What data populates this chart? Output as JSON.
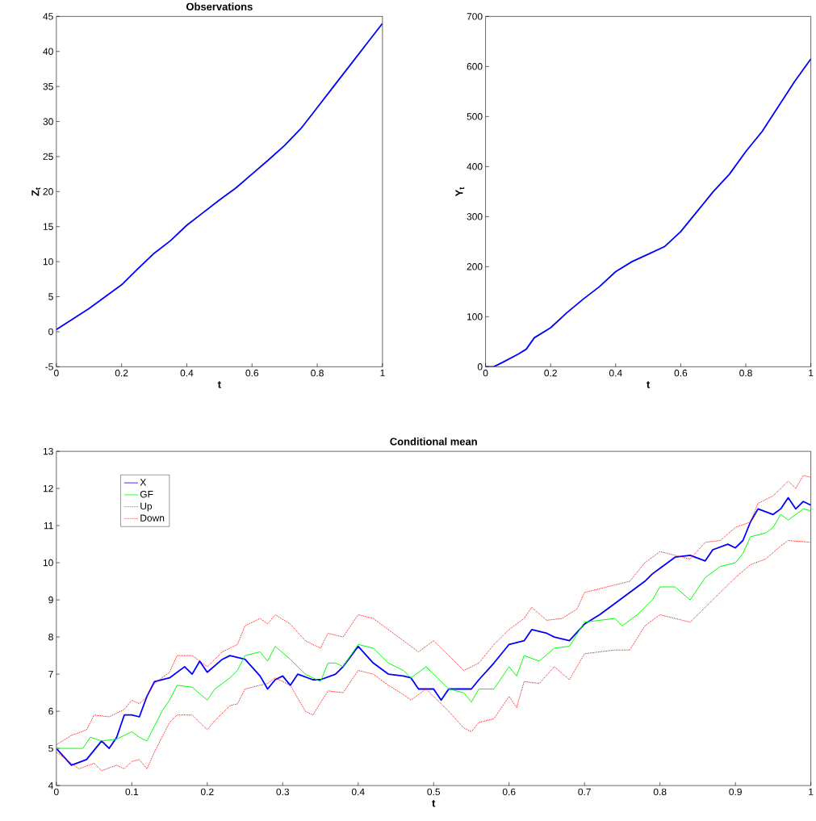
{
  "chart_data": [
    {
      "type": "line",
      "title": "Observations",
      "xlabel": "t",
      "ylabel": "Z$_{t}$",
      "xlim": [
        0,
        1
      ],
      "ylim": [
        -5,
        45
      ],
      "xticks": [
        0,
        0.2,
        0.4,
        0.6,
        0.8,
        1
      ],
      "yticks": [
        -5,
        0,
        5,
        10,
        15,
        20,
        25,
        30,
        35,
        40,
        45
      ],
      "series": [
        {
          "color": "#0000ff",
          "line_style": "solid",
          "x": [
            0,
            0.05,
            0.1,
            0.15,
            0.2,
            0.25,
            0.3,
            0.35,
            0.4,
            0.45,
            0.5,
            0.55,
            0.6,
            0.65,
            0.7,
            0.75,
            0.8,
            0.85,
            0.9,
            0.95,
            1
          ],
          "values": [
            0.3,
            1.8,
            3.3,
            5.0,
            6.7,
            9.0,
            11.2,
            13.0,
            15.2,
            17.0,
            18.8,
            20.5,
            22.5,
            24.5,
            26.6,
            29.0,
            32.0,
            35.0,
            38.0,
            41.0,
            44.0
          ]
        }
      ]
    },
    {
      "type": "line",
      "xlabel": "t",
      "ylabel": "Y$_{t}$",
      "xlim": [
        0,
        1
      ],
      "ylim": [
        0,
        700
      ],
      "xticks": [
        0,
        0.2,
        0.4,
        0.6,
        0.8,
        1
      ],
      "yticks": [
        0,
        100,
        200,
        300,
        400,
        500,
        600,
        700
      ],
      "series": [
        {
          "color": "#0000ff",
          "line_style": "solid",
          "x": [
            0,
            0.025,
            0.05,
            0.1,
            0.125,
            0.15,
            0.2,
            0.25,
            0.3,
            0.35,
            0.4,
            0.45,
            0.5,
            0.55,
            0.6,
            0.65,
            0.7,
            0.75,
            0.8,
            0.85,
            0.9,
            0.95,
            1
          ],
          "values": [
            0,
            0,
            8,
            25,
            35,
            58,
            78,
            108,
            135,
            160,
            190,
            210,
            225,
            240,
            270,
            310,
            350,
            385,
            430,
            470,
            520,
            570,
            615
          ]
        }
      ]
    },
    {
      "type": "line",
      "title": "Conditional mean",
      "xlabel": "t",
      "xlim": [
        0,
        1
      ],
      "ylim": [
        4,
        13
      ],
      "xticks": [
        0,
        0.1,
        0.2,
        0.3,
        0.4,
        0.5,
        0.6,
        0.7,
        0.8,
        0.9,
        1
      ],
      "yticks": [
        4,
        5,
        6,
        7,
        8,
        9,
        10,
        11,
        12,
        13
      ],
      "legend": "top left",
      "series": [
        {
          "name": "X",
          "color": "#0000ff",
          "line_style": "solid",
          "x": [
            0,
            0.02,
            0.04,
            0.06,
            0.07,
            0.08,
            0.09,
            0.1,
            0.11,
            0.12,
            0.13,
            0.15,
            0.17,
            0.18,
            0.19,
            0.2,
            0.22,
            0.23,
            0.25,
            0.27,
            0.28,
            0.29,
            0.3,
            0.31,
            0.32,
            0.34,
            0.35,
            0.37,
            0.38,
            0.4,
            0.42,
            0.44,
            0.46,
            0.47,
            0.48,
            0.5,
            0.51,
            0.52,
            0.54,
            0.55,
            0.56,
            0.58,
            0.6,
            0.62,
            0.63,
            0.65,
            0.66,
            0.68,
            0.7,
            0.72,
            0.74,
            0.76,
            0.78,
            0.79,
            0.8,
            0.82,
            0.84,
            0.86,
            0.87,
            0.89,
            0.9,
            0.91,
            0.92,
            0.93,
            0.95,
            0.96,
            0.97,
            0.98,
            0.99,
            1
          ],
          "values": [
            5.0,
            4.55,
            4.7,
            5.2,
            5.0,
            5.3,
            5.9,
            5.9,
            5.85,
            6.4,
            6.8,
            6.9,
            7.2,
            7.0,
            7.35,
            7.05,
            7.4,
            7.5,
            7.4,
            6.95,
            6.6,
            6.85,
            6.95,
            6.7,
            7.0,
            6.85,
            6.85,
            7.0,
            7.2,
            7.75,
            7.3,
            7.0,
            6.95,
            6.9,
            6.6,
            6.6,
            6.3,
            6.6,
            6.6,
            6.6,
            6.85,
            7.3,
            7.8,
            7.9,
            8.2,
            8.1,
            8.0,
            7.9,
            8.35,
            8.6,
            8.9,
            9.2,
            9.5,
            9.7,
            9.85,
            10.15,
            10.2,
            10.05,
            10.35,
            10.5,
            10.4,
            10.6,
            11.1,
            11.45,
            11.3,
            11.45,
            11.75,
            11.45,
            11.65,
            11.55
          ]
        },
        {
          "name": "GF",
          "color": "#00ff00",
          "line_style": "solid",
          "x": [
            0,
            0.02,
            0.035,
            0.045,
            0.06,
            0.08,
            0.1,
            0.11,
            0.12,
            0.13,
            0.14,
            0.15,
            0.16,
            0.18,
            0.2,
            0.21,
            0.22,
            0.23,
            0.24,
            0.25,
            0.27,
            0.28,
            0.29,
            0.31,
            0.33,
            0.35,
            0.36,
            0.37,
            0.38,
            0.4,
            0.42,
            0.44,
            0.46,
            0.47,
            0.49,
            0.5,
            0.52,
            0.54,
            0.55,
            0.56,
            0.58,
            0.6,
            0.61,
            0.62,
            0.64,
            0.66,
            0.68,
            0.7,
            0.72,
            0.74,
            0.75,
            0.77,
            0.79,
            0.8,
            0.82,
            0.84,
            0.86,
            0.88,
            0.9,
            0.91,
            0.92,
            0.94,
            0.95,
            0.96,
            0.97,
            0.99,
            1
          ],
          "values": [
            5.0,
            5.0,
            5.0,
            5.3,
            5.2,
            5.25,
            5.45,
            5.3,
            5.2,
            5.6,
            6.0,
            6.3,
            6.7,
            6.65,
            6.3,
            6.6,
            6.75,
            6.9,
            7.1,
            7.5,
            7.6,
            7.35,
            7.75,
            7.4,
            7.0,
            6.8,
            7.3,
            7.3,
            7.2,
            7.8,
            7.7,
            7.3,
            7.1,
            6.9,
            7.2,
            7.0,
            6.6,
            6.5,
            6.25,
            6.6,
            6.6,
            7.2,
            6.95,
            7.5,
            7.35,
            7.7,
            7.75,
            8.4,
            8.45,
            8.5,
            8.3,
            8.6,
            9.0,
            9.35,
            9.35,
            9.0,
            9.6,
            9.9,
            10.0,
            10.25,
            10.7,
            10.8,
            10.95,
            11.3,
            11.15,
            11.45,
            11.4
          ]
        },
        {
          "name": "Up",
          "color": "#ff0000",
          "line_style": "dotted",
          "x": [
            0,
            0.02,
            0.04,
            0.05,
            0.07,
            0.09,
            0.1,
            0.11,
            0.12,
            0.13,
            0.15,
            0.16,
            0.18,
            0.2,
            0.22,
            0.24,
            0.25,
            0.27,
            0.28,
            0.29,
            0.31,
            0.33,
            0.35,
            0.36,
            0.38,
            0.4,
            0.42,
            0.44,
            0.46,
            0.48,
            0.5,
            0.52,
            0.54,
            0.55,
            0.56,
            0.58,
            0.6,
            0.62,
            0.63,
            0.65,
            0.67,
            0.69,
            0.7,
            0.72,
            0.74,
            0.76,
            0.78,
            0.8,
            0.82,
            0.84,
            0.86,
            0.88,
            0.9,
            0.92,
            0.93,
            0.95,
            0.97,
            0.98,
            0.99,
            1
          ],
          "values": [
            5.1,
            5.35,
            5.5,
            5.9,
            5.85,
            6.05,
            6.3,
            6.2,
            6.4,
            6.75,
            7.05,
            7.5,
            7.5,
            7.2,
            7.6,
            7.8,
            8.3,
            8.5,
            8.35,
            8.6,
            8.35,
            7.9,
            7.7,
            8.1,
            8.0,
            8.6,
            8.5,
            8.2,
            7.9,
            7.6,
            7.9,
            7.5,
            7.1,
            7.2,
            7.3,
            7.8,
            8.2,
            8.5,
            8.8,
            8.45,
            8.5,
            8.75,
            9.2,
            9.3,
            9.4,
            9.5,
            10.0,
            10.3,
            10.2,
            10.1,
            10.55,
            10.6,
            10.95,
            11.1,
            11.6,
            11.8,
            12.2,
            12.0,
            12.35,
            12.3
          ]
        },
        {
          "name": "Down",
          "color": "#ff0000",
          "line_style": "dotted",
          "x": [
            0,
            0.02,
            0.03,
            0.05,
            0.06,
            0.08,
            0.09,
            0.1,
            0.11,
            0.12,
            0.13,
            0.14,
            0.15,
            0.16,
            0.18,
            0.2,
            0.21,
            0.23,
            0.24,
            0.25,
            0.26,
            0.28,
            0.29,
            0.31,
            0.33,
            0.34,
            0.36,
            0.38,
            0.4,
            0.42,
            0.44,
            0.46,
            0.47,
            0.49,
            0.5,
            0.52,
            0.54,
            0.55,
            0.56,
            0.58,
            0.6,
            0.61,
            0.62,
            0.64,
            0.66,
            0.68,
            0.7,
            0.72,
            0.74,
            0.76,
            0.78,
            0.8,
            0.82,
            0.84,
            0.86,
            0.88,
            0.9,
            0.92,
            0.94,
            0.96,
            0.97,
            1
          ],
          "values": [
            4.9,
            4.6,
            4.45,
            4.6,
            4.4,
            4.55,
            4.45,
            4.65,
            4.7,
            4.45,
            4.9,
            5.3,
            5.7,
            5.9,
            5.9,
            5.5,
            5.75,
            6.15,
            6.2,
            6.6,
            6.65,
            6.75,
            6.9,
            6.7,
            6.0,
            5.9,
            6.55,
            6.5,
            7.1,
            7.0,
            6.7,
            6.45,
            6.3,
            6.6,
            6.4,
            6.0,
            5.55,
            5.45,
            5.7,
            5.8,
            6.4,
            6.1,
            6.8,
            6.75,
            7.2,
            6.85,
            7.55,
            7.6,
            7.65,
            7.65,
            8.3,
            8.6,
            8.5,
            8.4,
            8.8,
            9.2,
            9.6,
            9.95,
            10.1,
            10.45,
            10.6,
            10.55
          ]
        }
      ]
    }
  ]
}
